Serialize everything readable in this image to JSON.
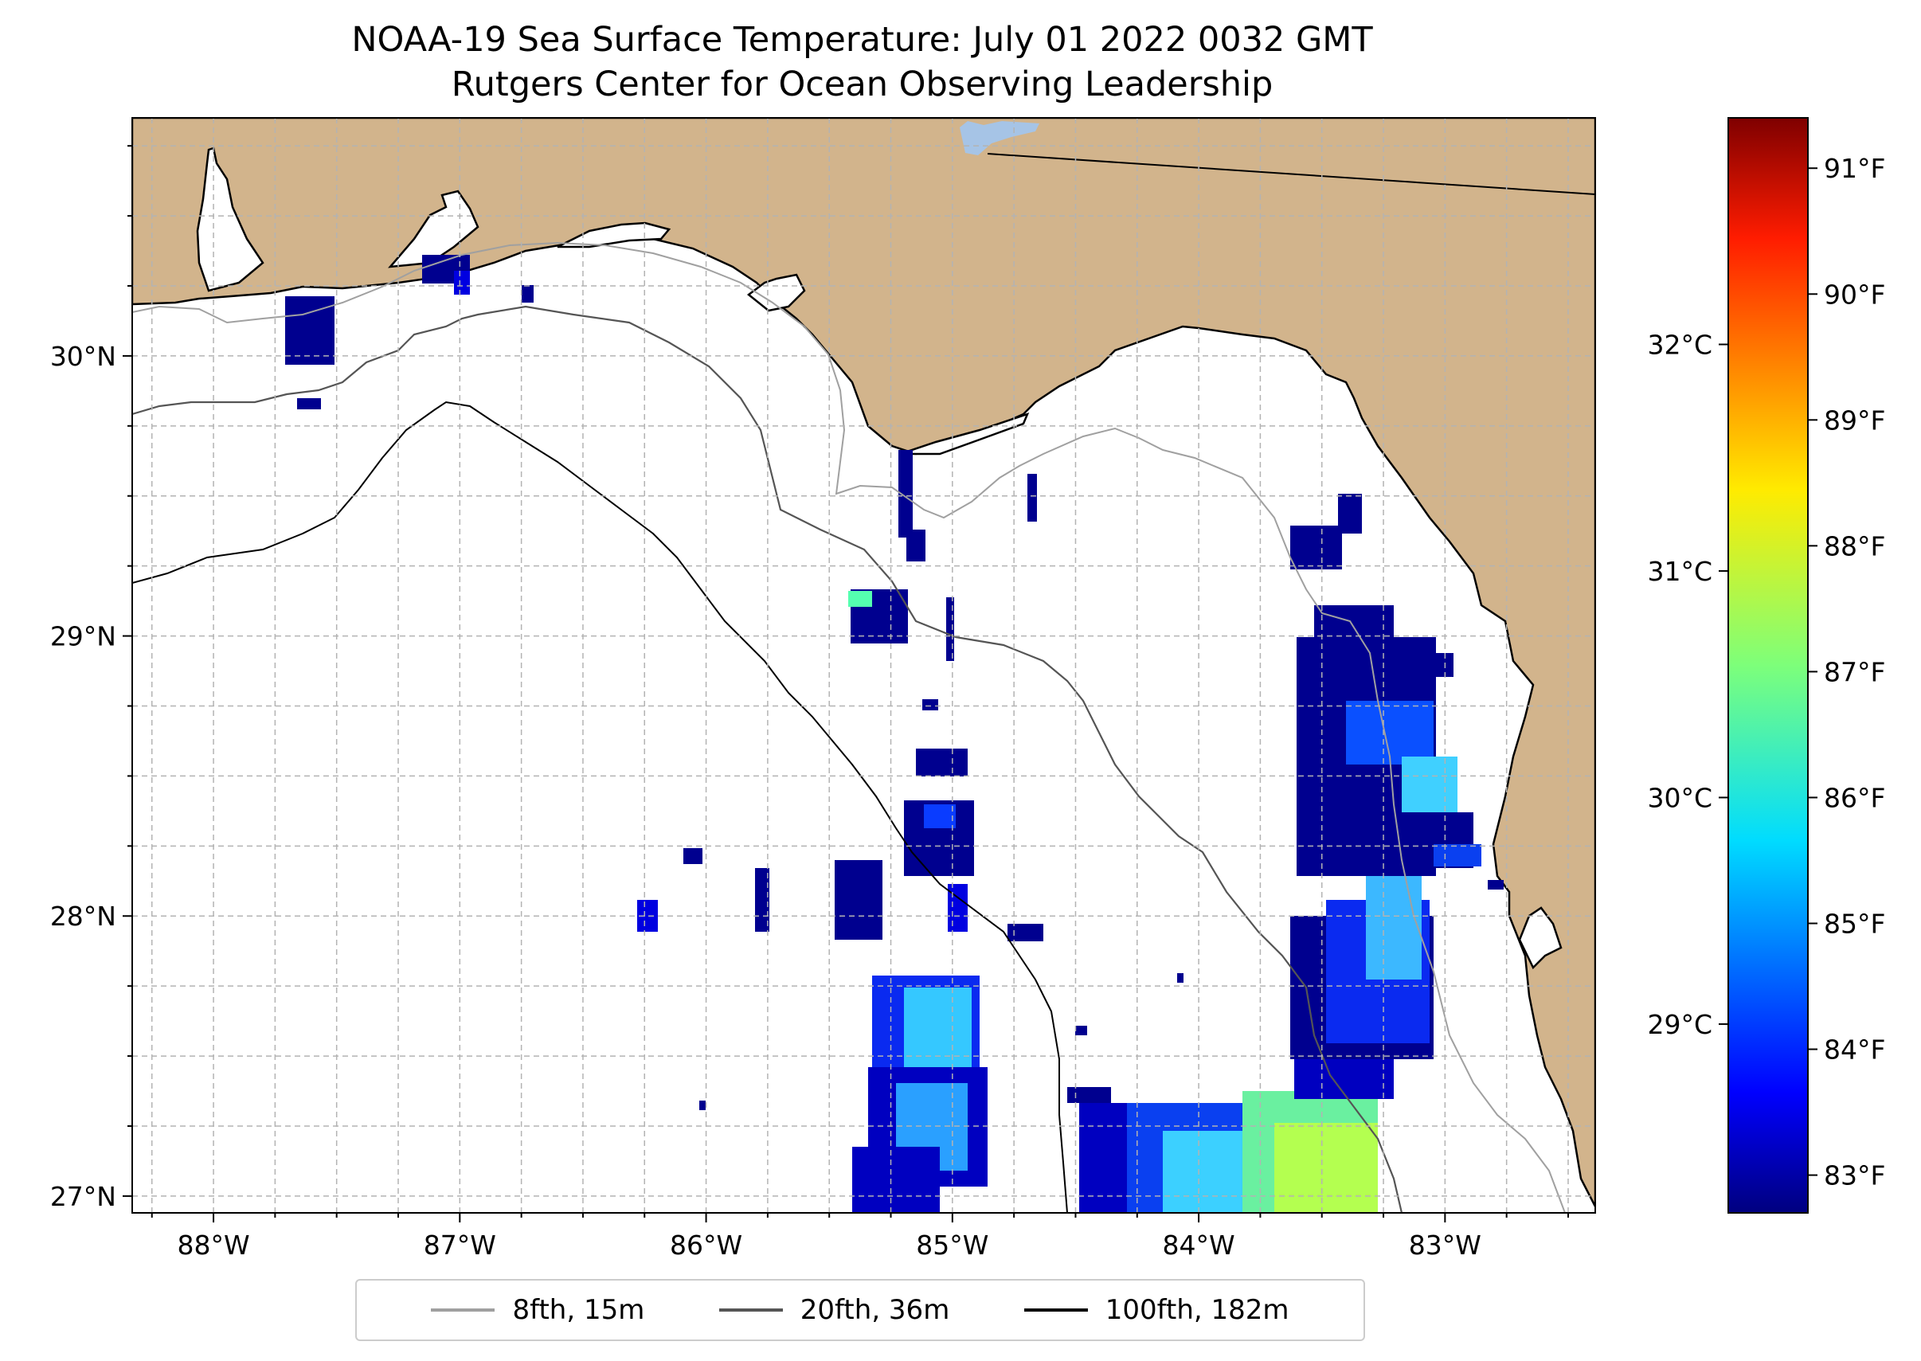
{
  "title": {
    "line1": "NOAA-19 Sea Surface Temperature: July 01 2022 0032 GMT",
    "line2": "Rutgers Center for Ocean Observing Leadership"
  },
  "map": {
    "lon_range": [
      -88.33,
      -82.39
    ],
    "lat_range": [
      26.94,
      30.85
    ],
    "lon_ticks": [
      {
        "value": -88,
        "label": "88°W"
      },
      {
        "value": -87,
        "label": "87°W"
      },
      {
        "value": -86,
        "label": "86°W"
      },
      {
        "value": -85,
        "label": "85°W"
      },
      {
        "value": -84,
        "label": "84°W"
      },
      {
        "value": -83,
        "label": "83°W"
      }
    ],
    "lat_ticks": [
      {
        "value": 27,
        "label": "27°N"
      },
      {
        "value": 28,
        "label": "28°N"
      },
      {
        "value": 29,
        "label": "29°N"
      },
      {
        "value": 30,
        "label": "30°N"
      }
    ],
    "grid": "dashed, every 0.25°",
    "land_color": "#d2b48c",
    "water_color": "#ffffff",
    "lake_color": "#a6c4e6"
  },
  "legend": {
    "placement": "bottom-center, below map",
    "entries": [
      {
        "label": "8fth, 15m",
        "color": "#a0a0a0"
      },
      {
        "label": "20fth, 36m",
        "color": "#555555"
      },
      {
        "label": "100fth, 182m",
        "color": "#000000"
      }
    ]
  },
  "colorbar": {
    "colormap": "jet",
    "f_range": [
      82.7,
      91.4
    ],
    "fahrenheit_ticks": [
      {
        "value": 83,
        "label": "83°F"
      },
      {
        "value": 84,
        "label": "84°F"
      },
      {
        "value": 85,
        "label": "85°F"
      },
      {
        "value": 86,
        "label": "86°F"
      },
      {
        "value": 87,
        "label": "87°F"
      },
      {
        "value": 88,
        "label": "88°F"
      },
      {
        "value": 89,
        "label": "89°F"
      },
      {
        "value": 90,
        "label": "90°F"
      },
      {
        "value": 91,
        "label": "91°F"
      }
    ],
    "celsius_ticks": [
      {
        "value": 29,
        "label": "29°C"
      },
      {
        "value": 30,
        "label": "30°C"
      },
      {
        "value": 31,
        "label": "31°C"
      },
      {
        "value": 32,
        "label": "32°C"
      }
    ]
  }
}
